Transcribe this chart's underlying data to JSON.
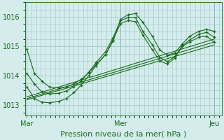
{
  "background_color": "#d4ecec",
  "grid_color": "#a0c8c8",
  "line_color": "#1a6b1a",
  "title": "Pression niveau de la mer( hPa )",
  "xlabel_ticks": [
    "Mar",
    "Mer",
    "Jeu"
  ],
  "xlabel_tick_pos": [
    0.0,
    0.5,
    1.0
  ],
  "ylim": [
    1012.65,
    1016.5
  ],
  "yticks": [
    1013,
    1014,
    1015,
    1016
  ],
  "xlim": [
    -0.01,
    1.04
  ],
  "wavy_lines": [
    {
      "x": [
        0.0,
        0.04,
        0.08,
        0.12,
        0.17,
        0.21,
        0.25,
        0.29,
        0.33,
        0.37,
        0.42,
        0.46,
        0.5,
        0.54,
        0.58,
        0.62,
        0.67,
        0.71,
        0.75,
        0.79,
        0.83,
        0.87,
        0.92,
        0.96,
        1.0
      ],
      "y": [
        1014.9,
        1014.08,
        1013.82,
        1013.62,
        1013.58,
        1013.62,
        1013.72,
        1013.88,
        1014.1,
        1014.38,
        1014.72,
        1015.18,
        1015.92,
        1016.08,
        1016.12,
        1015.82,
        1015.35,
        1014.88,
        1014.7,
        1014.78,
        1015.08,
        1015.35,
        1015.52,
        1015.58,
        1015.52
      ]
    },
    {
      "x": [
        0.0,
        0.04,
        0.08,
        0.12,
        0.17,
        0.21,
        0.25,
        0.29,
        0.33,
        0.37,
        0.42,
        0.46,
        0.5,
        0.54,
        0.58,
        0.62,
        0.67,
        0.71,
        0.75,
        0.79,
        0.83,
        0.87,
        0.92,
        0.96,
        1.0
      ],
      "y": [
        1014.08,
        1013.72,
        1013.45,
        1013.38,
        1013.4,
        1013.48,
        1013.62,
        1013.82,
        1014.12,
        1014.45,
        1014.82,
        1015.3,
        1015.88,
        1015.98,
        1015.98,
        1015.52,
        1015.05,
        1014.62,
        1014.48,
        1014.65,
        1015.02,
        1015.22,
        1015.42,
        1015.48,
        1015.32
      ]
    },
    {
      "x": [
        0.0,
        0.04,
        0.08,
        0.12,
        0.17,
        0.21,
        0.25,
        0.29,
        0.33,
        0.37,
        0.42,
        0.46,
        0.5,
        0.54,
        0.58,
        0.62,
        0.67,
        0.71,
        0.75,
        0.79,
        0.83,
        0.87,
        0.92,
        0.96,
        1.0
      ],
      "y": [
        1013.62,
        1013.22,
        1013.1,
        1013.08,
        1013.12,
        1013.22,
        1013.42,
        1013.68,
        1014.0,
        1014.35,
        1014.72,
        1015.22,
        1015.78,
        1015.88,
        1015.85,
        1015.38,
        1014.88,
        1014.5,
        1014.4,
        1014.6,
        1015.0,
        1015.15,
        1015.32,
        1015.35,
        1015.15
      ]
    }
  ],
  "straight_lines": [
    {
      "x": [
        0.0,
        1.0
      ],
      "y": [
        1013.18,
        1015.05
      ]
    },
    {
      "x": [
        0.0,
        1.0
      ],
      "y": [
        1013.22,
        1015.15
      ]
    },
    {
      "x": [
        0.0,
        1.0
      ],
      "y": [
        1013.28,
        1015.25
      ]
    }
  ]
}
